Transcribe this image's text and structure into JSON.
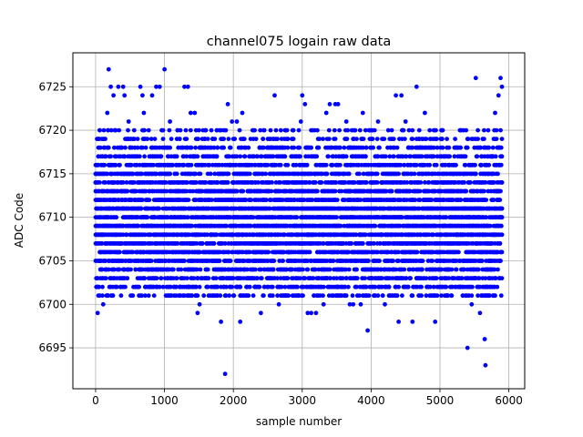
{
  "chart_data": {
    "type": "scatter",
    "title": "channel075 logain raw data",
    "xlabel": "sample number",
    "ylabel": "ADC Code",
    "xlim": [
      -330,
      6230
    ],
    "ylim": [
      6690.3,
      6728.9
    ],
    "xticks": [
      0,
      1000,
      2000,
      3000,
      4000,
      5000,
      6000
    ],
    "yticks": [
      6695,
      6700,
      6705,
      6710,
      6715,
      6720,
      6725
    ],
    "grid": true,
    "marker_color": "#0000ff",
    "series": [
      {
        "sample_range": [
          0,
          5900
        ],
        "sample_step": 10,
        "typical_range": [
          6701,
          6720
        ],
        "points": [
          [
            0,
            6710
          ],
          [
            30,
            6699
          ],
          [
            40,
            6719
          ],
          [
            60,
            6708
          ],
          [
            110,
            6700
          ],
          [
            170,
            6722
          ],
          [
            190,
            6727
          ],
          [
            220,
            6725
          ],
          [
            260,
            6724
          ],
          [
            330,
            6725
          ],
          [
            400,
            6725
          ],
          [
            420,
            6724
          ],
          [
            480,
            6721
          ],
          [
            540,
            6701
          ],
          [
            650,
            6725
          ],
          [
            680,
            6724
          ],
          [
            700,
            6722
          ],
          [
            720,
            6701
          ],
          [
            790,
            6702
          ],
          [
            820,
            6724
          ],
          [
            880,
            6725
          ],
          [
            930,
            6725
          ],
          [
            960,
            6720
          ],
          [
            1000,
            6727
          ],
          [
            1030,
            6704
          ],
          [
            1080,
            6721
          ],
          [
            1130,
            6712
          ],
          [
            1160,
            6705
          ],
          [
            1220,
            6719
          ],
          [
            1260,
            6703
          ],
          [
            1290,
            6725
          ],
          [
            1340,
            6725
          ],
          [
            1380,
            6722
          ],
          [
            1440,
            6722
          ],
          [
            1480,
            6699
          ],
          [
            1510,
            6700
          ],
          [
            1550,
            6719
          ],
          [
            1600,
            6720
          ],
          [
            1700,
            6701
          ],
          [
            1760,
            6720
          ],
          [
            1820,
            6698
          ],
          [
            1880,
            6692
          ],
          [
            1920,
            6723
          ],
          [
            1980,
            6721
          ],
          [
            2050,
            6721
          ],
          [
            2100,
            6698
          ],
          [
            2130,
            6722
          ],
          [
            2200,
            6705
          ],
          [
            2290,
            6704
          ],
          [
            2400,
            6699
          ],
          [
            2450,
            6720
          ],
          [
            2500,
            6718
          ],
          [
            2600,
            6724
          ],
          [
            2620,
            6720
          ],
          [
            2660,
            6700
          ],
          [
            2720,
            6718
          ],
          [
            2800,
            6701
          ],
          [
            2880,
            6701
          ],
          [
            2950,
            6720
          ],
          [
            2980,
            6721
          ],
          [
            3000,
            6724
          ],
          [
            3040,
            6723
          ],
          [
            3080,
            6699
          ],
          [
            3100,
            6708
          ],
          [
            3130,
            6699
          ],
          [
            3200,
            6699
          ],
          [
            3240,
            6702
          ],
          [
            3310,
            6700
          ],
          [
            3350,
            6722
          ],
          [
            3400,
            6723
          ],
          [
            3480,
            6723
          ],
          [
            3520,
            6723
          ],
          [
            3570,
            6701
          ],
          [
            3640,
            6721
          ],
          [
            3690,
            6700
          ],
          [
            3740,
            6700
          ],
          [
            3850,
            6700
          ],
          [
            3880,
            6722
          ],
          [
            3920,
            6701
          ],
          [
            3950,
            6697
          ],
          [
            4000,
            6720
          ],
          [
            4100,
            6721
          ],
          [
            4160,
            6702
          ],
          [
            4200,
            6700
          ],
          [
            4300,
            6720
          ],
          [
            4360,
            6724
          ],
          [
            4400,
            6698
          ],
          [
            4440,
            6724
          ],
          [
            4500,
            6721
          ],
          [
            4600,
            6698
          ],
          [
            4660,
            6725
          ],
          [
            4700,
            6719
          ],
          [
            4780,
            6722
          ],
          [
            4860,
            6719
          ],
          [
            4930,
            6698
          ],
          [
            4960,
            6717
          ],
          [
            5100,
            6719
          ],
          [
            5220,
            6719
          ],
          [
            5300,
            6720
          ],
          [
            5400,
            6695
          ],
          [
            5460,
            6700
          ],
          [
            5490,
            6719
          ],
          [
            5520,
            6726
          ],
          [
            5580,
            6699
          ],
          [
            5620,
            6701
          ],
          [
            5650,
            6696
          ],
          [
            5660,
            6693
          ],
          [
            5700,
            6701
          ],
          [
            5760,
            6717
          ],
          [
            5800,
            6722
          ],
          [
            5850,
            6724
          ],
          [
            5880,
            6726
          ],
          [
            5900,
            6725
          ]
        ]
      }
    ]
  }
}
